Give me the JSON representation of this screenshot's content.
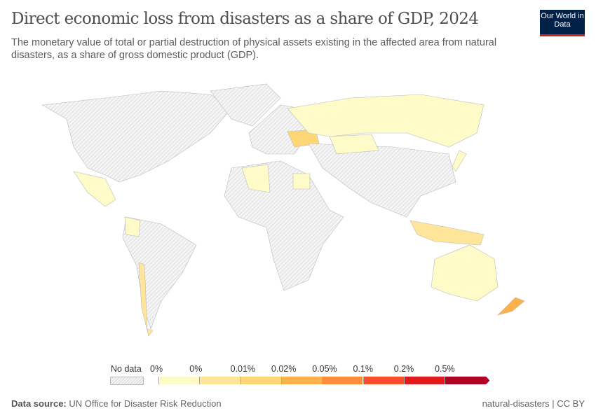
{
  "header": {
    "title": "Direct economic loss from disasters as a share of GDP, 2024",
    "subtitle": "The monetary value of total or partial destruction of physical assets existing in the affected area from natural disasters, as a share of gross domestic product (GDP).",
    "logo": "Our World in Data"
  },
  "legend": {
    "no_data": "No data",
    "labels": [
      "0%",
      "0%",
      "0.01%",
      "0.02%",
      "0.05%",
      "0.1%",
      "0.2%",
      "0.5%"
    ],
    "colors": [
      "#fefbc8",
      "#fee59a",
      "#fed674",
      "#fdb14b",
      "#fd8d3c",
      "#fc4e2a",
      "#e31a1c",
      "#b10026"
    ]
  },
  "chart_data": {
    "type": "map",
    "title": "Direct economic loss from disasters as a share of GDP, 2024",
    "countries": {
      "Russia": "0%",
      "Australia": "0%",
      "Ukraine": "0.02%",
      "New Zealand": "0.05%",
      "Indonesia": "0.01%",
      "Chile": "0.01%",
      "Mexico": "0%",
      "Colombia": "0%",
      "Algeria": "0%",
      "Egypt": "0%",
      "Kazakhstan": "0%",
      "Japan": "0%"
    }
  },
  "footer": {
    "source_label": "Data source:",
    "source": "UN Office for Disaster Risk Reduction",
    "right": "natural-disasters | CC BY"
  }
}
